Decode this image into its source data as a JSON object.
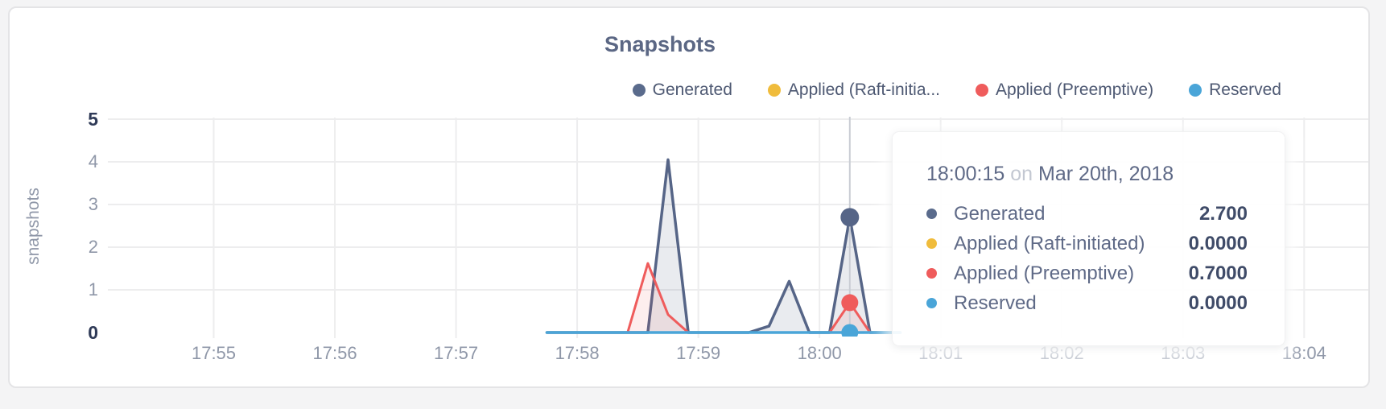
{
  "page": {
    "background": "#f4f4f5"
  },
  "card": {
    "background": "#ffffff",
    "border_color": "#e4e4e6"
  },
  "chart": {
    "title": "Snapshots",
    "y_axis_label": "snapshots",
    "legend": [
      {
        "label": "Generated",
        "color": "#5a6b8c"
      },
      {
        "label": "Applied (Raft-initia...",
        "color": "#f0bc3c"
      },
      {
        "label": "Applied (Preemptive)",
        "color": "#ef5c5c"
      },
      {
        "label": "Reserved",
        "color": "#4aa5d8"
      }
    ]
  },
  "axes": {
    "x_ticks": [
      "17:55",
      "17:56",
      "17:57",
      "17:58",
      "17:59",
      "18:00",
      "18:01",
      "18:02",
      "18:03",
      "18:04"
    ],
    "y_ticks": [
      {
        "label": "5",
        "value": 5,
        "bold": true
      },
      {
        "label": "4",
        "value": 4,
        "bold": false
      },
      {
        "label": "3",
        "value": 3,
        "bold": false
      },
      {
        "label": "2",
        "value": 2,
        "bold": false
      },
      {
        "label": "1",
        "value": 1,
        "bold": false
      },
      {
        "label": "0",
        "value": 0,
        "bold": true
      }
    ]
  },
  "chart_data": {
    "type": "area",
    "title": "Snapshots",
    "ylabel": "snapshots",
    "ylim": [
      0,
      5
    ],
    "x_tick_interval": "1 minute",
    "x_range": [
      "17:54:06",
      "18:04:32"
    ],
    "grid": true,
    "legend_position": "top-right",
    "series": [
      {
        "name": "Generated",
        "color": "#566587",
        "fill": "rgba(86,101,135,0.13)",
        "width": 3.5,
        "points": [
          [
            "17:57:45",
            0
          ],
          [
            "17:58:35",
            0
          ],
          [
            "17:58:45",
            4.05
          ],
          [
            "17:58:55",
            0
          ],
          [
            "17:59:25",
            0
          ],
          [
            "17:59:35",
            0.15
          ],
          [
            "17:59:45",
            1.2
          ],
          [
            "17:59:55",
            0
          ],
          [
            "18:00:05",
            0
          ],
          [
            "18:00:15",
            2.7
          ],
          [
            "18:00:25",
            0
          ],
          [
            "18:00:40",
            0
          ]
        ]
      },
      {
        "name": "Applied (Raft-initiated)",
        "color": "#f0bc3c",
        "width": 3,
        "points": [
          [
            "17:57:45",
            0
          ],
          [
            "18:00:40",
            0
          ]
        ]
      },
      {
        "name": "Applied (Preemptive)",
        "color": "#ef5c5c",
        "fill": "rgba(239,92,92,0.10)",
        "width": 3,
        "points": [
          [
            "17:57:45",
            0
          ],
          [
            "17:58:25",
            0
          ],
          [
            "17:58:35",
            1.62
          ],
          [
            "17:58:45",
            0.42
          ],
          [
            "17:58:55",
            0
          ],
          [
            "18:00:05",
            0
          ],
          [
            "18:00:15",
            0.7
          ],
          [
            "18:00:25",
            0
          ],
          [
            "18:00:40",
            0
          ]
        ]
      },
      {
        "name": "Reserved",
        "color": "#4aa5d8",
        "width": 3.5,
        "points": [
          [
            "17:57:45",
            0
          ],
          [
            "18:00:40",
            0
          ]
        ]
      }
    ],
    "hover": {
      "time": "18:00:15",
      "date": "Mar 20th, 2018",
      "markers": [
        {
          "series": "Generated",
          "value": 2.7,
          "r": 11.5
        },
        {
          "series": "Applied (Preemptive)",
          "value": 0.7,
          "r": 10.5
        },
        {
          "series": "Reserved",
          "value": 0,
          "r": 10.5
        }
      ]
    }
  },
  "tooltip": {
    "time": "18:00:15",
    "separator": "on",
    "date": "Mar 20th, 2018",
    "rows": [
      {
        "label": "Generated",
        "value": "2.700",
        "color": "#5a6b8c"
      },
      {
        "label": "Applied (Raft-initiated)",
        "value": "0.0000",
        "color": "#f0bc3c"
      },
      {
        "label": "Applied (Preemptive)",
        "value": "0.7000",
        "color": "#ef5c5c"
      },
      {
        "label": "Reserved",
        "value": "0.0000",
        "color": "#4aa5d8"
      }
    ]
  }
}
